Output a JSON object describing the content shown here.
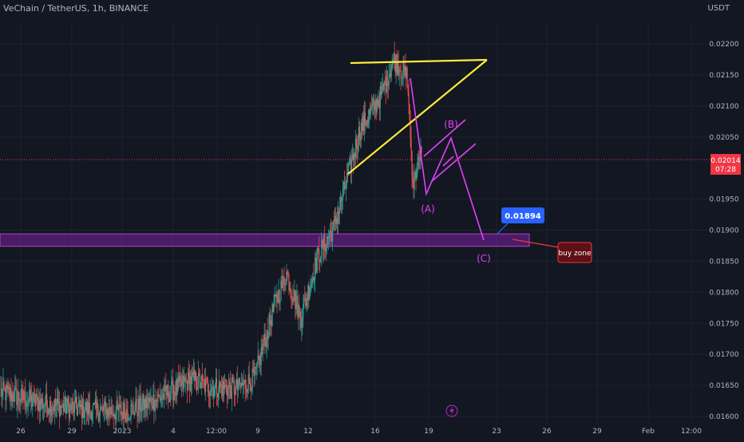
{
  "header": {
    "title": "VeChain / TetherUS, 1h, BINANCE",
    "currency": "USDT"
  },
  "price_axis": {
    "ticks": [
      "0.02200",
      "0.02150",
      "0.02100",
      "0.02050",
      "0.01950",
      "0.01900",
      "0.01850",
      "0.01800",
      "0.01750",
      "0.01700",
      "0.01650",
      "0.01600"
    ]
  },
  "time_axis": {
    "ticks": [
      "26",
      "29",
      "2023",
      "4",
      "12:00",
      "9",
      "12",
      "16",
      "19",
      "23",
      "26",
      "29",
      "Feb",
      "12:00"
    ]
  },
  "last_price": {
    "value": "0.02014",
    "countdown": "07:28",
    "color": "#f23645"
  },
  "annotations": {
    "wave_a": "(A)",
    "wave_b": "(B)",
    "wave_c": "(C)",
    "target_price": "0.01894",
    "buy_zone_label": "buy zone"
  },
  "colors": {
    "background": "#131722",
    "up_candle": "#26a69a",
    "down_candle": "#ef5350",
    "triangle": "#ffeb3b",
    "waves": "#e040fb",
    "buy_zone": "#7b1fa2",
    "target_label": "#2962ff",
    "buy_zone_callout": "#5d1114"
  },
  "icons": {
    "bottom_marker": "lightning-icon"
  },
  "chart_data": {
    "type": "candlestick",
    "title": "VeChain / TetherUS, 1h, BINANCE",
    "ylim": [
      0.01595,
      0.0224
    ],
    "y_scale": "linear",
    "grid": true,
    "series": [
      {
        "name": "VeChain / TetherUS",
        "anchors_time_index": [
          0,
          40,
          80,
          120,
          160,
          200,
          240,
          262,
          300,
          320,
          345,
          360,
          378,
          400,
          420,
          440,
          452,
          480,
          495,
          510,
          530
        ],
        "anchors_close": [
          0.0164,
          0.01625,
          0.01615,
          0.0161,
          0.01608,
          0.0163,
          0.0166,
          0.01648,
          0.01645,
          0.01663,
          0.0178,
          0.0183,
          0.0176,
          0.0186,
          0.01905,
          0.02,
          0.0206,
          0.0212,
          0.02175,
          0.0215,
          0.0212
        ],
        "last_price": 0.02014
      }
    ],
    "zones": [
      {
        "name": "buy zone",
        "from": 0.01874,
        "to": 0.01894
      }
    ]
  }
}
